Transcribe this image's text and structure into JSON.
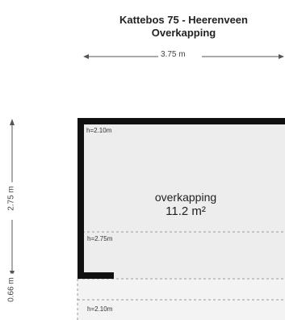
{
  "plan": {
    "title_line1": "Kattebos 75 - Heerenveen",
    "title_line2": "Overkapping",
    "dimensions": {
      "top_width": "3.75 m",
      "left_height": "2.75 m",
      "left_bottom_height": "0.66 m"
    },
    "room": {
      "name": "overkapping",
      "area": "11.2 m²"
    },
    "heights": {
      "h1": "h=2.10m",
      "h2": "h=2.75m",
      "h3": "h=2.10m"
    },
    "colors": {
      "wall": "#111111",
      "floor": "#ededed",
      "dash": "#999999"
    }
  }
}
